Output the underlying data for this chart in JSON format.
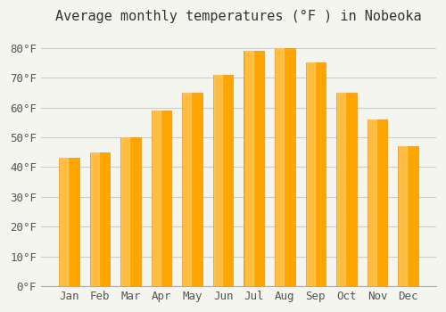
{
  "title": "Average monthly temperatures (°F ) in Nobeoka",
  "months": [
    "Jan",
    "Feb",
    "Mar",
    "Apr",
    "May",
    "Jun",
    "Jul",
    "Aug",
    "Sep",
    "Oct",
    "Nov",
    "Dec"
  ],
  "values": [
    43,
    45,
    50,
    59,
    65,
    71,
    79,
    80,
    75,
    65,
    56,
    47
  ],
  "bar_color": "#FFA500",
  "bar_edge_color": "#E8901A",
  "ylim": [
    0,
    85
  ],
  "yticks": [
    0,
    10,
    20,
    30,
    40,
    50,
    60,
    70,
    80
  ],
  "ytick_labels": [
    "0°F",
    "10°F",
    "20°F",
    "30°F",
    "40°F",
    "50°F",
    "60°F",
    "70°F",
    "80°F"
  ],
  "background_color": "#f5f5f0",
  "grid_color": "#cccccc",
  "title_fontsize": 11,
  "tick_fontsize": 9
}
